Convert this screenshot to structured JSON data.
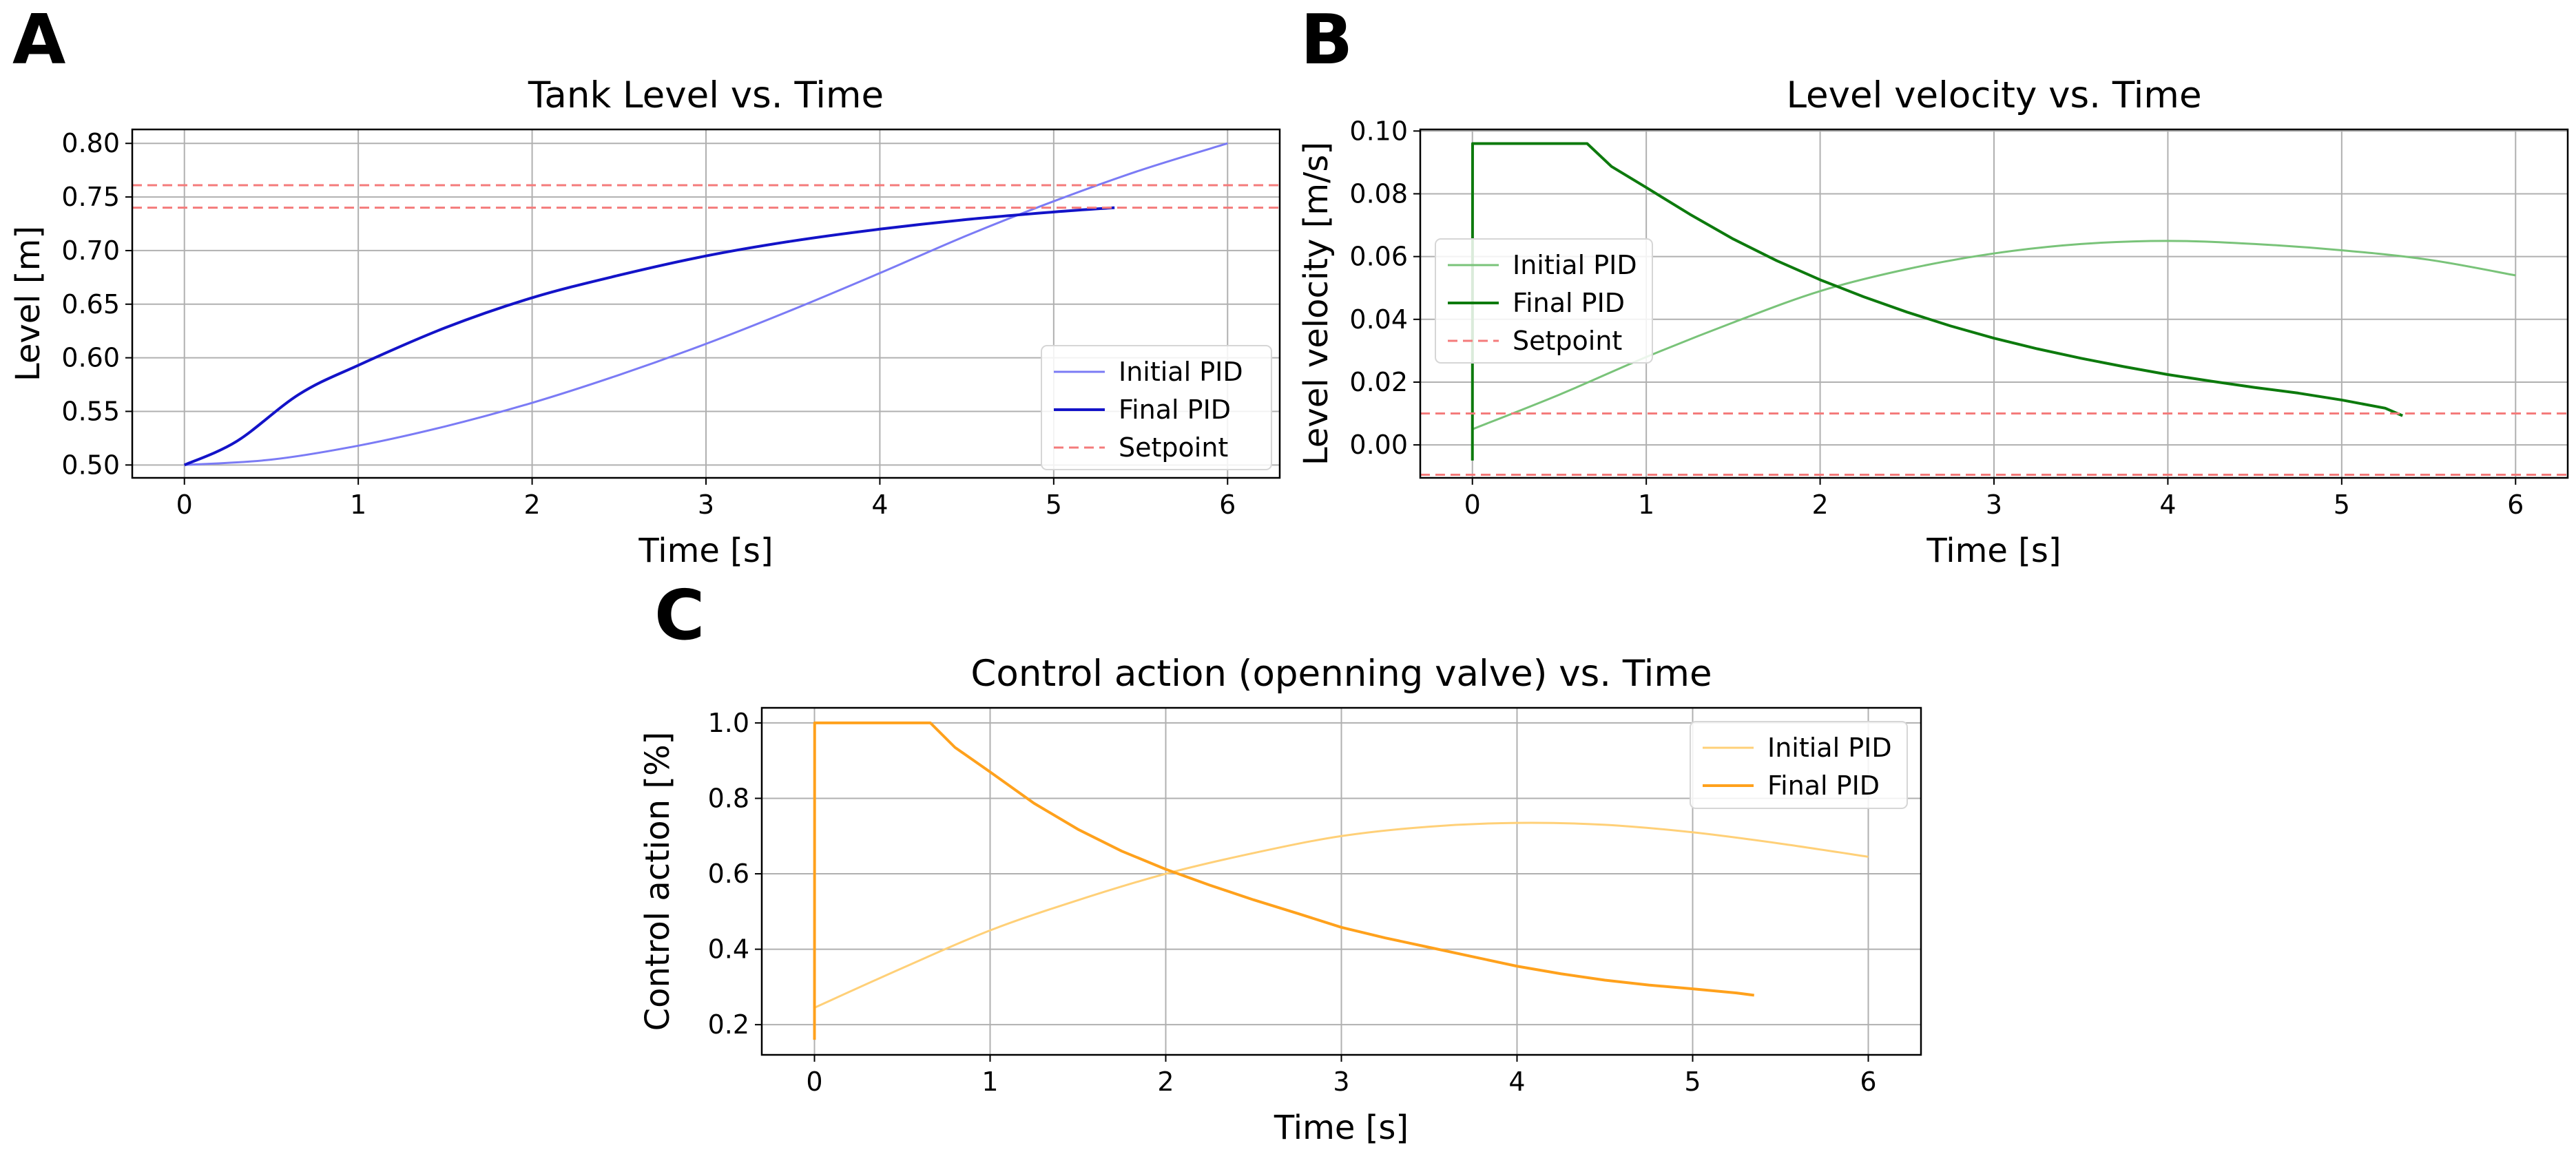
{
  "chart_data": [
    {
      "panel": "A",
      "type": "line",
      "title": "Tank Level vs. Time",
      "xlabel": "Time [s]",
      "ylabel": "Level [m]",
      "xlim": [
        -0.3,
        6.3
      ],
      "ylim": [
        0.488,
        0.813
      ],
      "xticks": [
        0,
        1,
        2,
        3,
        4,
        5,
        6
      ],
      "yticks": [
        0.5,
        0.55,
        0.6,
        0.65,
        0.7,
        0.75,
        0.8
      ],
      "xtick_labels": [
        "0",
        "1",
        "2",
        "3",
        "4",
        "5",
        "6"
      ],
      "ytick_labels": [
        "0.50",
        "0.55",
        "0.60",
        "0.65",
        "0.70",
        "0.75",
        "0.80"
      ],
      "grid": true,
      "legend_position": "lower-right",
      "series": [
        {
          "name": "Initial PID",
          "color": "#7b7bf5",
          "width": 3,
          "dash": "",
          "curve": "smooth",
          "x": [
            0,
            0.5,
            1,
            1.5,
            2,
            2.5,
            3,
            3.5,
            4,
            4.5,
            5,
            5.5,
            6
          ],
          "y": [
            0.5,
            0.505,
            0.518,
            0.536,
            0.558,
            0.584,
            0.613,
            0.645,
            0.679,
            0.714,
            0.746,
            0.775,
            0.8
          ]
        },
        {
          "name": "Final PID",
          "color": "#1313c8",
          "width": 4,
          "dash": "",
          "curve": "smooth",
          "x": [
            0,
            0.3,
            0.66,
            1,
            1.5,
            2,
            2.5,
            3,
            3.5,
            4,
            4.5,
            5,
            5.35
          ],
          "y": [
            0.5,
            0.522,
            0.566,
            0.593,
            0.628,
            0.656,
            0.677,
            0.695,
            0.709,
            0.72,
            0.729,
            0.736,
            0.74
          ]
        },
        {
          "name": "Setpoint",
          "color": "#f47b7b",
          "width": 3,
          "dash": "14,8",
          "curve": "line",
          "x": [
            -0.3,
            6.3
          ],
          "y": [
            0.761,
            0.761
          ]
        },
        {
          "name": "",
          "color": "#f47b7b",
          "width": 3,
          "dash": "14,8",
          "curve": "line",
          "x": [
            -0.3,
            6.3
          ],
          "y": [
            0.74,
            0.74
          ]
        }
      ]
    },
    {
      "panel": "B",
      "type": "line",
      "title": "Level velocity vs. Time",
      "xlabel": "Time [s]",
      "ylabel": "Level velocity [m/s]",
      "xlim": [
        -0.3,
        6.3
      ],
      "ylim": [
        -0.0105,
        0.1005
      ],
      "xticks": [
        0,
        1,
        2,
        3,
        4,
        5,
        6
      ],
      "yticks": [
        0.0,
        0.02,
        0.04,
        0.06,
        0.08,
        0.1
      ],
      "xtick_labels": [
        "0",
        "1",
        "2",
        "3",
        "4",
        "5",
        "6"
      ],
      "ytick_labels": [
        "0.00",
        "0.02",
        "0.04",
        "0.06",
        "0.08",
        "0.10"
      ],
      "grid": true,
      "legend_position": "center-left",
      "series": [
        {
          "name": "Initial PID",
          "color": "#79c379",
          "width": 3,
          "dash": "",
          "curve": "smooth",
          "x": [
            0,
            0.5,
            1,
            1.5,
            2,
            2.5,
            3,
            3.5,
            4,
            4.5,
            5,
            5.5,
            6
          ],
          "y": [
            0.005,
            0.016,
            0.028,
            0.039,
            0.049,
            0.056,
            0.061,
            0.064,
            0.065,
            0.064,
            0.062,
            0.059,
            0.054
          ]
        },
        {
          "name": "Final PID",
          "color": "#0d7a0d",
          "width": 4,
          "dash": "",
          "curve": "line",
          "x": [
            0,
            0.001,
            0.66,
            0.8,
            1,
            1.25,
            1.5,
            1.75,
            2,
            2.25,
            2.5,
            2.75,
            3,
            3.25,
            3.5,
            3.75,
            4,
            4.25,
            4.5,
            4.75,
            5,
            5.25,
            5.35
          ],
          "y": [
            -0.005,
            0.096,
            0.096,
            0.0887,
            0.082,
            0.0735,
            0.0656,
            0.0587,
            0.0526,
            0.0472,
            0.0423,
            0.0379,
            0.034,
            0.0306,
            0.0276,
            0.0249,
            0.0224,
            0.0203,
            0.0183,
            0.0165,
            0.0143,
            0.0117,
            0.0093
          ]
        },
        {
          "name": "Setpoint",
          "color": "#f47b7b",
          "width": 3,
          "dash": "14,8",
          "curve": "line",
          "x": [
            -0.3,
            6.3
          ],
          "y": [
            0.01,
            0.01
          ]
        },
        {
          "name": "",
          "color": "#f47b7b",
          "width": 3,
          "dash": "14,8",
          "curve": "line",
          "x": [
            -0.3,
            6.3
          ],
          "y": [
            -0.0095,
            -0.0095
          ]
        }
      ]
    },
    {
      "panel": "C",
      "type": "line",
      "title": "Control action (openning valve) vs. Time",
      "xlabel": "Time [s]",
      "ylabel": "Control action [%]",
      "xlim": [
        -0.3,
        6.3
      ],
      "ylim": [
        0.12,
        1.04
      ],
      "xticks": [
        0,
        1,
        2,
        3,
        4,
        5,
        6
      ],
      "yticks": [
        0.2,
        0.4,
        0.6,
        0.8,
        1.0
      ],
      "xtick_labels": [
        "0",
        "1",
        "2",
        "3",
        "4",
        "5",
        "6"
      ],
      "ytick_labels": [
        "0.2",
        "0.4",
        "0.6",
        "0.8",
        "1.0"
      ],
      "grid": true,
      "legend_position": "top-right",
      "series": [
        {
          "name": "Initial PID",
          "color": "#ffd078",
          "width": 3,
          "dash": "",
          "curve": "smooth",
          "x": [
            0,
            0.5,
            1,
            1.5,
            2,
            2.5,
            3,
            3.5,
            4,
            4.5,
            5,
            5.5,
            6
          ],
          "y": [
            0.245,
            0.35,
            0.45,
            0.53,
            0.6,
            0.655,
            0.7,
            0.725,
            0.735,
            0.73,
            0.71,
            0.68,
            0.645
          ]
        },
        {
          "name": "Final PID",
          "color": "#ffa11c",
          "width": 4,
          "dash": "",
          "curve": "line",
          "x": [
            0,
            0.001,
            0.66,
            0.8,
            1,
            1.25,
            1.5,
            1.75,
            2,
            2.25,
            2.5,
            2.75,
            3,
            3.25,
            3.5,
            3.75,
            4,
            4.25,
            4.5,
            4.75,
            5,
            5.25,
            5.35
          ],
          "y": [
            0.16,
            1.0,
            1.0,
            0.935,
            0.87,
            0.787,
            0.718,
            0.66,
            0.612,
            0.57,
            0.531,
            0.495,
            0.458,
            0.43,
            0.405,
            0.38,
            0.355,
            0.335,
            0.318,
            0.305,
            0.295,
            0.284,
            0.278
          ]
        }
      ]
    }
  ]
}
